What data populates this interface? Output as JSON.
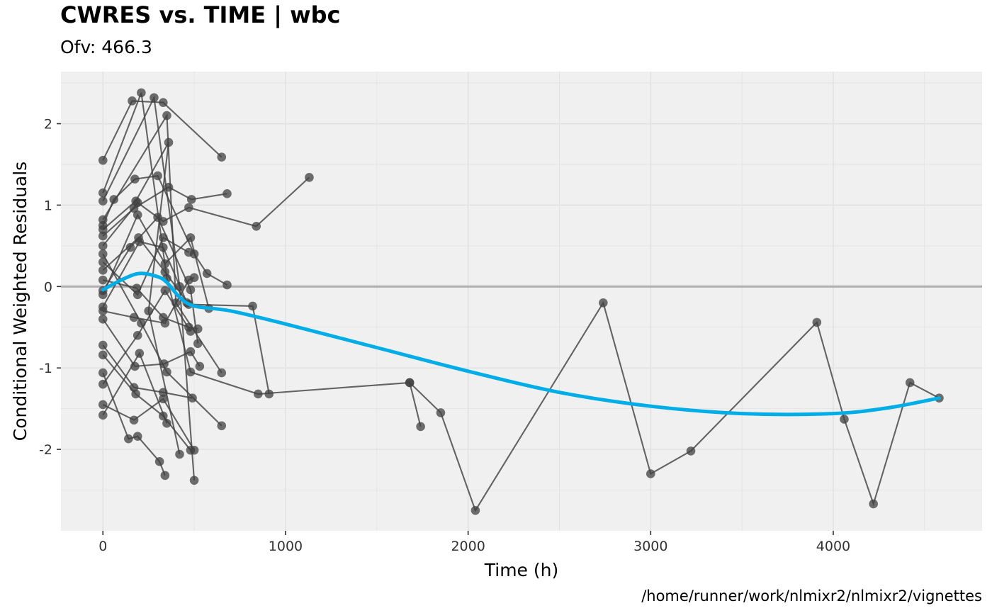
{
  "header": {
    "title": "CWRES vs. TIME | wbc",
    "subtitle": "Ofv: 466.3"
  },
  "footer": {
    "caption": "/home/runner/work/nlmixr2/nlmixr2/vignettes"
  },
  "colors": {
    "panel_background": "#f0f0f0",
    "gridline": "#e2e2e2",
    "zero_line": "#b0b0b0",
    "points_and_lines": "#404040",
    "smooth_line": "#00ade7"
  },
  "chart_data": {
    "type": "scatter",
    "title": "CWRES vs. TIME | wbc",
    "subtitle": "Ofv: 466.3",
    "xlabel": "Time (h)",
    "ylabel": "Conditional Weighted Residuals",
    "xlim": [
      -230,
      4815
    ],
    "ylim": [
      -3.0,
      2.64
    ],
    "x_ticks": [
      0,
      1000,
      2000,
      3000,
      4000
    ],
    "y_ticks": [
      -2,
      -1,
      0,
      1,
      2
    ],
    "x_tick_labels": [
      "0",
      "1000",
      "2000",
      "3000",
      "4000"
    ],
    "y_tick_labels": [
      "-2",
      "-1",
      "0",
      "1",
      "2"
    ],
    "grid": true,
    "reference_line_y": 0,
    "individual_paths": [
      [
        [
          0,
          1.55
        ],
        [
          160,
          2.28
        ],
        [
          330,
          2.26
        ],
        [
          650,
          1.59
        ]
      ],
      [
        [
          0,
          1.15
        ],
        [
          210,
          2.38
        ],
        [
          350,
          0.1
        ],
        [
          480,
          -1.05
        ],
        [
          850,
          -1.32
        ],
        [
          1680,
          -1.18
        ]
      ],
      [
        [
          0,
          1.05
        ],
        [
          280,
          2.32
        ],
        [
          420,
          0.0
        ],
        [
          500,
          -2.38
        ]
      ],
      [
        [
          0,
          0.82
        ],
        [
          350,
          2.1
        ],
        [
          400,
          -0.2
        ],
        [
          650,
          -1.06
        ]
      ],
      [
        [
          0,
          0.75
        ],
        [
          60,
          1.07
        ],
        [
          175,
          1.32
        ],
        [
          300,
          1.36
        ],
        [
          500,
          0.4
        ],
        [
          570,
          0.16
        ],
        [
          680,
          0.02
        ]
      ],
      [
        [
          0,
          0.7
        ],
        [
          180,
          1.05
        ],
        [
          360,
          1.77
        ],
        [
          250,
          -0.3
        ],
        [
          420,
          -2.06
        ]
      ],
      [
        [
          0,
          0.62
        ],
        [
          170,
          0.96
        ],
        [
          360,
          1.22
        ],
        [
          485,
          1.07
        ],
        [
          680,
          1.14
        ]
      ],
      [
        [
          0,
          0.5
        ],
        [
          190,
          1.03
        ],
        [
          330,
          0.8
        ],
        [
          470,
          0.97
        ],
        [
          840,
          0.74
        ],
        [
          1130,
          1.34
        ]
      ],
      [
        [
          0,
          0.2
        ],
        [
          195,
          0.6
        ],
        [
          340,
          0.18
        ],
        [
          470,
          -0.22
        ],
        [
          820,
          -0.24
        ],
        [
          910,
          -1.32
        ]
      ],
      [
        [
          0,
          0.08
        ],
        [
          185,
          -0.02
        ],
        [
          330,
          -0.38
        ],
        [
          470,
          -0.5
        ],
        [
          520,
          -0.52
        ]
      ],
      [
        [
          0,
          -0.05
        ],
        [
          150,
          0.48
        ],
        [
          300,
          0.85
        ],
        [
          480,
          -0.04
        ],
        [
          520,
          -0.7
        ]
      ],
      [
        [
          0,
          -0.1
        ],
        [
          190,
          0.88
        ],
        [
          340,
          0.28
        ],
        [
          480,
          0.6
        ],
        [
          580,
          -0.27
        ]
      ],
      [
        [
          0,
          -0.3
        ],
        [
          170,
          -0.38
        ],
        [
          340,
          -0.45
        ],
        [
          470,
          0.08
        ],
        [
          500,
          0.11
        ]
      ],
      [
        [
          0,
          -0.4
        ],
        [
          175,
          -0.98
        ],
        [
          335,
          -0.95
        ],
        [
          480,
          -0.8
        ],
        [
          530,
          -0.98
        ]
      ],
      [
        [
          0,
          -0.72
        ],
        [
          170,
          -1.24
        ],
        [
          330,
          -1.3
        ],
        [
          490,
          -1.37
        ]
      ],
      [
        [
          0,
          -0.84
        ],
        [
          180,
          -1.32
        ],
        [
          330,
          -1.59
        ],
        [
          480,
          -2.01
        ]
      ],
      [
        [
          0,
          -1.06
        ],
        [
          140,
          -1.87
        ],
        [
          190,
          -1.84
        ],
        [
          310,
          -2.15
        ],
        [
          340,
          -2.32
        ]
      ],
      [
        [
          0,
          -1.45
        ],
        [
          170,
          -1.64
        ],
        [
          330,
          -1.38
        ],
        [
          500,
          -2.01
        ]
      ],
      [
        [
          0,
          -1.58
        ],
        [
          200,
          -0.82
        ],
        [
          350,
          -1.68
        ]
      ],
      [
        [
          0,
          -1.2
        ],
        [
          190,
          -0.6
        ],
        [
          340,
          -0.05
        ],
        [
          480,
          -0.55
        ]
      ],
      [
        [
          0,
          0.4
        ],
        [
          210,
          -0.45
        ],
        [
          350,
          -1.05
        ],
        [
          650,
          -1.71
        ]
      ],
      [
        [
          0,
          -0.25
        ],
        [
          200,
          0.55
        ],
        [
          330,
          0.48
        ],
        [
          460,
          -0.2
        ]
      ],
      [
        [
          0,
          0.3
        ],
        [
          190,
          -0.1
        ],
        [
          330,
          0.6
        ],
        [
          470,
          0.42
        ]
      ],
      [
        [
          1740,
          -1.72
        ],
        [
          1680,
          -1.18
        ],
        [
          1850,
          -1.55
        ],
        [
          2040,
          -2.75
        ],
        [
          2740,
          -0.2
        ],
        [
          3000,
          -2.3
        ],
        [
          3220,
          -2.02
        ],
        [
          3910,
          -0.44
        ],
        [
          4060,
          -1.63
        ],
        [
          4220,
          -2.67
        ],
        [
          4420,
          -1.18
        ],
        [
          4580,
          -1.37
        ]
      ]
    ],
    "smooth_x": [
      0,
      100,
      200,
      300,
      350,
      420,
      500,
      700,
      1000,
      1500,
      2000,
      2500,
      3000,
      3500,
      4000,
      4300,
      4580
    ],
    "smooth_y": [
      -0.04,
      0.08,
      0.16,
      0.12,
      0.05,
      -0.13,
      -0.24,
      -0.3,
      -0.46,
      -0.75,
      -1.04,
      -1.3,
      -1.47,
      -1.56,
      -1.56,
      -1.49,
      -1.37
    ]
  }
}
